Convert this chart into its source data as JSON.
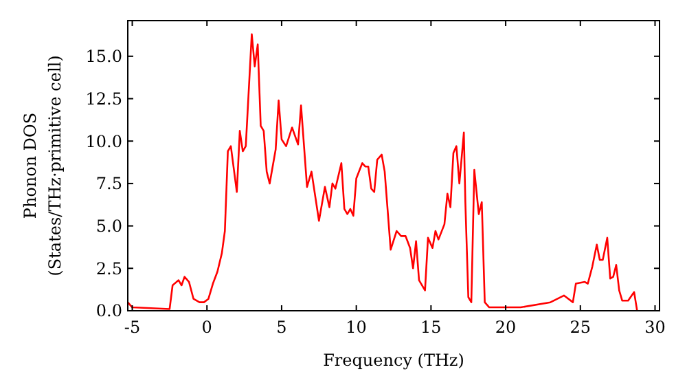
{
  "chart_data": {
    "type": "line",
    "xlabel": "Frequency (THz)",
    "ylabel": "Phonon DOS\n(States/THz·primitive cell)",
    "xlim": [
      -5.3,
      30.3
    ],
    "ylim": [
      0,
      17.1
    ],
    "xticks": [
      -5,
      0,
      5,
      10,
      15,
      20,
      25,
      30
    ],
    "yticks": [
      {
        "value": 0,
        "label": "0.0"
      },
      {
        "value": 2.5,
        "label": "2.5"
      },
      {
        "value": 5,
        "label": "5.0"
      },
      {
        "value": 7.5,
        "label": "7.5"
      },
      {
        "value": 10,
        "label": "10.0"
      },
      {
        "value": 12.5,
        "label": "12.5"
      },
      {
        "value": 15,
        "label": "15.0"
      }
    ],
    "grid": false,
    "marker": "none",
    "line_style": "solid",
    "series": [
      {
        "color": "#ff0000",
        "x": [
          -5.3,
          -5.0,
          -2.5,
          -2.3,
          -1.9,
          -1.7,
          -1.5,
          -1.2,
          -0.9,
          -0.5,
          -0.2,
          0.1,
          0.4,
          0.7,
          1.0,
          1.2,
          1.4,
          1.6,
          2.0,
          2.2,
          2.4,
          2.6,
          3.0,
          3.2,
          3.4,
          3.6,
          3.8,
          4.0,
          4.2,
          4.6,
          4.8,
          5.0,
          5.3,
          5.7,
          6.1,
          6.3,
          6.7,
          7.0,
          7.5,
          7.9,
          8.2,
          8.4,
          8.6,
          9.0,
          9.2,
          9.4,
          9.6,
          9.8,
          10.0,
          10.4,
          10.6,
          10.8,
          11.0,
          11.2,
          11.4,
          11.7,
          11.9,
          12.3,
          12.7,
          13.0,
          13.3,
          13.6,
          13.8,
          14.0,
          14.2,
          14.6,
          14.8,
          15.1,
          15.3,
          15.5,
          15.9,
          16.1,
          16.3,
          16.5,
          16.7,
          16.9,
          17.2,
          17.3,
          17.5,
          17.7,
          17.9,
          18.2,
          18.4,
          18.6,
          18.9,
          21.0,
          23.0,
          23.9,
          24.5,
          24.7,
          25.3,
          25.5,
          25.8,
          26.1,
          26.3,
          26.5,
          26.8,
          27.0,
          27.2,
          27.4,
          27.6,
          27.8,
          28.2,
          28.6,
          28.8
        ],
        "values": [
          0.5,
          0.2,
          0.1,
          1.5,
          1.8,
          1.5,
          2.0,
          1.7,
          0.7,
          0.5,
          0.5,
          0.7,
          1.6,
          2.3,
          3.4,
          4.7,
          9.4,
          9.7,
          7.0,
          10.6,
          9.4,
          9.7,
          16.3,
          14.4,
          15.7,
          10.9,
          10.6,
          8.2,
          7.5,
          9.5,
          12.4,
          10.1,
          9.7,
          10.8,
          9.8,
          12.1,
          7.3,
          8.2,
          5.3,
          7.3,
          6.1,
          7.5,
          7.2,
          8.7,
          6.0,
          5.7,
          6.0,
          5.6,
          7.8,
          8.7,
          8.5,
          8.5,
          7.2,
          7.0,
          8.9,
          9.2,
          8.2,
          3.6,
          4.7,
          4.4,
          4.4,
          3.7,
          2.5,
          4.1,
          1.8,
          1.2,
          4.3,
          3.7,
          4.7,
          4.2,
          5.1,
          6.9,
          6.1,
          9.3,
          9.7,
          7.5,
          10.5,
          6.4,
          0.8,
          0.5,
          8.3,
          5.7,
          6.4,
          0.5,
          0.2,
          0.2,
          0.5,
          0.9,
          0.5,
          1.6,
          1.7,
          1.6,
          2.6,
          3.9,
          3.0,
          3.0,
          4.3,
          1.9,
          2.0,
          2.7,
          1.2,
          0.6,
          0.6,
          1.1,
          0
        ]
      }
    ]
  }
}
